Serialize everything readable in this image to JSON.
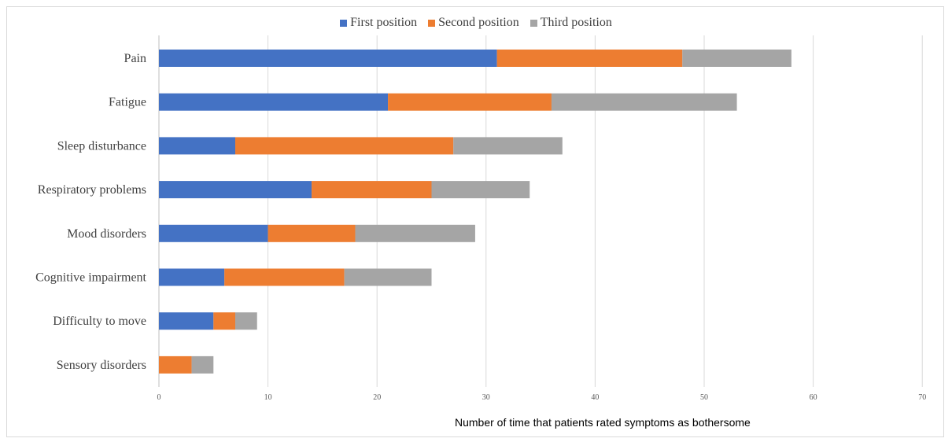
{
  "chart_data": {
    "type": "bar",
    "orientation": "horizontal",
    "stacked": true,
    "title": "",
    "xlabel": "Number of time  that patients rated  symptoms as bothersome",
    "ylabel": "",
    "xlim": [
      0,
      70
    ],
    "xticks": [
      "0",
      "10",
      "20",
      "30",
      "40",
      "50",
      "60",
      "70"
    ],
    "grid": "vertical",
    "legend_position": "top",
    "categories": [
      "Pain",
      "Fatigue",
      "Sleep disturbance",
      "Respiratory problems",
      "Mood disorders",
      "Cognitive impairment",
      "Difficulty to move",
      "Sensory disorders"
    ],
    "series": [
      {
        "name": "First position",
        "color": "#4472c4",
        "values": [
          31,
          21,
          7,
          14,
          10,
          6,
          5,
          0
        ]
      },
      {
        "name": "Second position",
        "color": "#ed7d31",
        "values": [
          17,
          15,
          20,
          11,
          8,
          11,
          2,
          3
        ]
      },
      {
        "name": "Third position",
        "color": "#a5a5a5",
        "values": [
          10,
          17,
          10,
          9,
          11,
          8,
          2,
          2
        ]
      }
    ]
  }
}
